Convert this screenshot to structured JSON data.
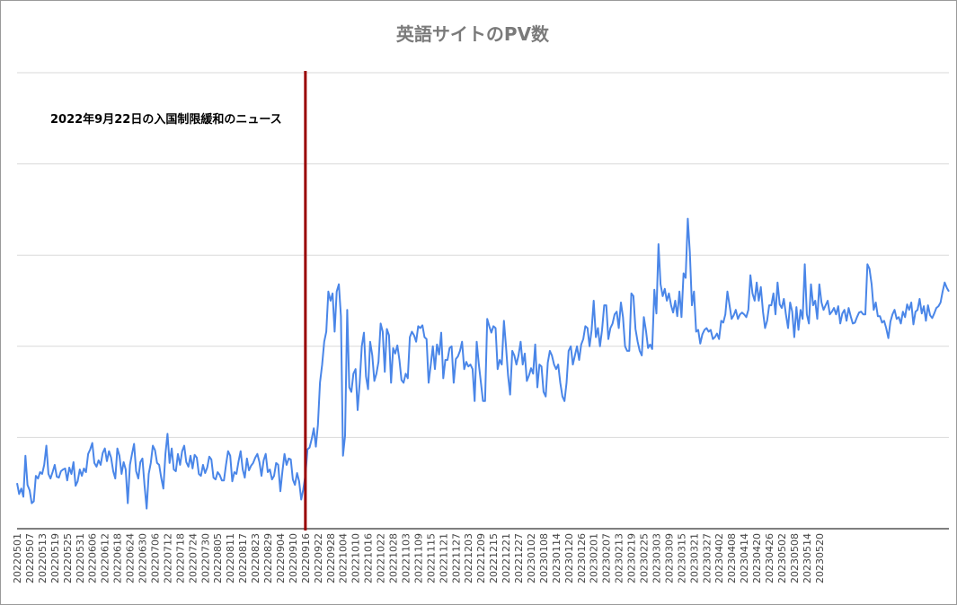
{
  "chart_data": {
    "type": "line",
    "title": "英語サイトのPV数",
    "xlabel": "",
    "ylabel": "",
    "ylim": [
      0,
      500
    ],
    "y_gridlines": [
      0,
      100,
      200,
      300,
      400,
      500
    ],
    "y_tick_labels_visible": false,
    "grid": true,
    "legend": "none",
    "line_color": "#4a86e8",
    "marker_color": "#990000",
    "start_date": "20220501",
    "x_tick_labels": [
      "20220501",
      "20220507",
      "20220513",
      "20220519",
      "20220525",
      "20220531",
      "20220606",
      "20220612",
      "20220618",
      "20220624",
      "20220630",
      "20220706",
      "20220712",
      "20220718",
      "20220724",
      "20220730",
      "20220805",
      "20220811",
      "20220817",
      "20220823",
      "20220829",
      "20220904",
      "20220910",
      "20220916",
      "20220922",
      "20220928",
      "20221004",
      "20221010",
      "20221016",
      "20221022",
      "20221028",
      "20221103",
      "20221109",
      "20221115",
      "20221121",
      "20221127",
      "20221203",
      "20221209",
      "20221215",
      "20221221",
      "20221227",
      "20230102",
      "20230108",
      "20230114",
      "20230120",
      "20230126",
      "20230201",
      "20230207",
      "20230213",
      "20230219",
      "20230225",
      "20230303",
      "20230309",
      "20230315",
      "20230321",
      "20230327",
      "20230402",
      "20230408",
      "20230414",
      "20230420",
      "20230426",
      "20230502",
      "20230508",
      "20230514",
      "20230520"
    ],
    "annotation": {
      "date": "20220916",
      "label": "2022年9月22日の入国制限緩和のニュース"
    },
    "series": [
      {
        "values": [
          50,
          38,
          44,
          35,
          80,
          48,
          42,
          28,
          30,
          58,
          55,
          62,
          60,
          70,
          91,
          60,
          55,
          62,
          70,
          57,
          56,
          63,
          65,
          66,
          53,
          67,
          60,
          73,
          47,
          52,
          65,
          58,
          66,
          62,
          82,
          87,
          94,
          72,
          68,
          75,
          70,
          83,
          88,
          74,
          85,
          78,
          63,
          55,
          88,
          80,
          60,
          73,
          65,
          28,
          70,
          82,
          93,
          63,
          55,
          73,
          77,
          48,
          22,
          60,
          72,
          91,
          86,
          72,
          70,
          56,
          44,
          82,
          104,
          72,
          88,
          65,
          63,
          82,
          70,
          85,
          91,
          73,
          68,
          80,
          66,
          81,
          78,
          60,
          58,
          70,
          61,
          67,
          79,
          76,
          56,
          54,
          62,
          59,
          53,
          53,
          70,
          85,
          80,
          52,
          62,
          60,
          74,
          85,
          65,
          56,
          77,
          64,
          69,
          72,
          78,
          82,
          73,
          58,
          75,
          82,
          62,
          65,
          54,
          58,
          72,
          70,
          41,
          63,
          82,
          70,
          77,
          76,
          54,
          48,
          61,
          52,
          32,
          43,
          59,
          87,
          89,
          98,
          110,
          90,
          114,
          160,
          180,
          205,
          216,
          260,
          250,
          258,
          216,
          260,
          268,
          233,
          80,
          102,
          240,
          155,
          150,
          170,
          175,
          130,
          160,
          200,
          215,
          167,
          153,
          205,
          190,
          162,
          170,
          183,
          225,
          216,
          172,
          219,
          212,
          160,
          198,
          192,
          201,
          185,
          163,
          160,
          170,
          165,
          210,
          216,
          212,
          205,
          222,
          220,
          223,
          210,
          208,
          160,
          180,
          200,
          175,
          202,
          191,
          215,
          165,
          185,
          185,
          198,
          200,
          160,
          186,
          189,
          195,
          205,
          175,
          183,
          178,
          180,
          175,
          140,
          205,
          181,
          160,
          140,
          140,
          230,
          222,
          215,
          222,
          220,
          175,
          185,
          180,
          228,
          200,
          168,
          147,
          195,
          190,
          180,
          190,
          205,
          180,
          192,
          162,
          168,
          176,
          170,
          202,
          155,
          180,
          178,
          150,
          145,
          182,
          195,
          190,
          180,
          175,
          180,
          160,
          145,
          140,
          160,
          195,
          200,
          180,
          190,
          200,
          185,
          202,
          208,
          222,
          220,
          200,
          218,
          250,
          210,
          220,
          200,
          218,
          245,
          245,
          208,
          220,
          225,
          235,
          238,
          220,
          248,
          232,
          200,
          195,
          195,
          258,
          255,
          219,
          205,
          195,
          190,
          232,
          217,
          198,
          202,
          197,
          262,
          236,
          312,
          268,
          255,
          263,
          250,
          258,
          245,
          237,
          250,
          233,
          260,
          232,
          280,
          275,
          340,
          303,
          245,
          260,
          216,
          218,
          203,
          213,
          218,
          220,
          216,
          218,
          208,
          210,
          214,
          208,
          228,
          226,
          235,
          260,
          245,
          230,
          234,
          240,
          230,
          235,
          237,
          235,
          232,
          240,
          278,
          258,
          250,
          270,
          250,
          265,
          238,
          220,
          228,
          245,
          245,
          258,
          235,
          270,
          246,
          242,
          252,
          235,
          220,
          248,
          238,
          210,
          243,
          218,
          240,
          230,
          290,
          235,
          225,
          268,
          245,
          250,
          230,
          268,
          248,
          240,
          245,
          250,
          235,
          238,
          242,
          235,
          244,
          225,
          236,
          240,
          228,
          242,
          233,
          225,
          226,
          232,
          237,
          238,
          235,
          235,
          290,
          285,
          268,
          240,
          248,
          233,
          233,
          226,
          228,
          220,
          209,
          227,
          235,
          240,
          230,
          232,
          225,
          238,
          232,
          246,
          240,
          248,
          224,
          238,
          240,
          252,
          236,
          244,
          228,
          245,
          234,
          231,
          236,
          242,
          244,
          248,
          260,
          270,
          264,
          260
        ]
      }
    ]
  }
}
